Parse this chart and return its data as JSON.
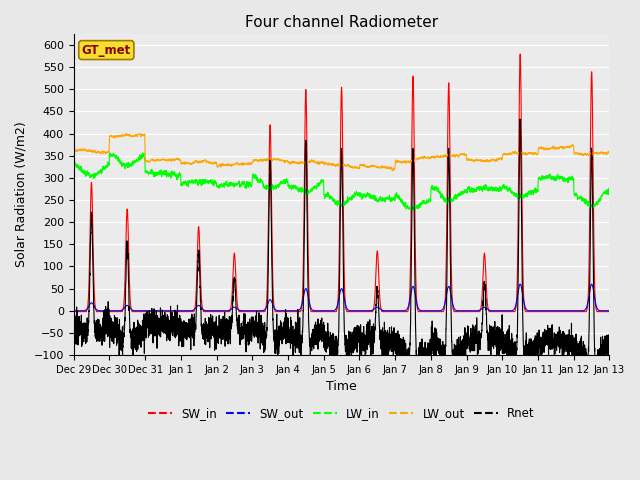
{
  "title": "Four channel Radiometer",
  "xlabel": "Time",
  "ylabel": "Solar Radiation (W/m2)",
  "ylim": [
    -100,
    625
  ],
  "yticks": [
    -100,
    -50,
    0,
    50,
    100,
    150,
    200,
    250,
    300,
    350,
    400,
    450,
    500,
    550,
    600
  ],
  "bg_color": "#e8e8e8",
  "plot_bg": "#ebebeb",
  "station_label": "GT_met",
  "legend_items": [
    "SW_in",
    "SW_out",
    "LW_in",
    "LW_out",
    "Rnet"
  ],
  "legend_colors": [
    "red",
    "blue",
    "lime",
    "orange",
    "black"
  ],
  "tick_labels": [
    "Dec 29",
    "Dec 30",
    "Dec 31",
    "Jan 1",
    "Jan 2",
    "Jan 3",
    "Jan 4",
    "Jan 5",
    "Jan 6",
    "Jan 7",
    "Jan 8",
    "Jan 9",
    "Jan 10",
    "Jan 11",
    "Jan 12",
    "Jan 13"
  ],
  "sw_in_peaks": [
    290,
    230,
    0,
    190,
    130,
    420,
    500,
    505,
    135,
    530,
    515,
    130,
    580,
    0,
    540
  ],
  "sw_out_peaks": [
    18,
    12,
    0,
    12,
    8,
    25,
    50,
    50,
    8,
    55,
    55,
    8,
    60,
    0,
    60
  ],
  "lw_in_base": [
    335,
    358,
    310,
    290,
    285,
    305,
    295,
    270,
    255,
    260,
    280,
    275,
    285,
    300,
    270
  ],
  "lw_out_base": [
    360,
    395,
    340,
    335,
    330,
    340,
    335,
    328,
    325,
    340,
    350,
    340,
    355,
    368,
    355
  ],
  "n_days": 15,
  "ppd": 288
}
